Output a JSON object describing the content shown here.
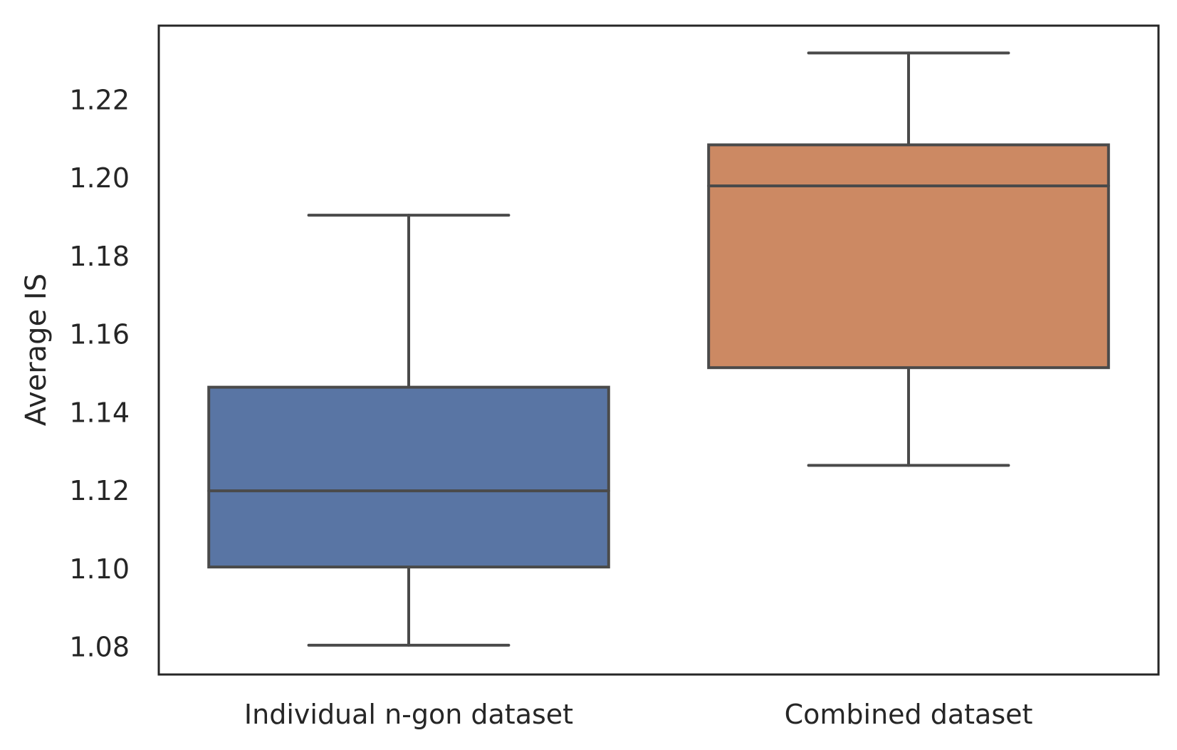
{
  "chart_data": {
    "type": "box",
    "title": "",
    "xlabel": "",
    "ylabel": "Average IS",
    "ylim": [
      1.073,
      1.239
    ],
    "yticks": [
      1.08,
      1.1,
      1.12,
      1.14,
      1.16,
      1.18,
      1.2,
      1.22
    ],
    "ytick_labels": [
      "1.08",
      "1.10",
      "1.12",
      "1.14",
      "1.16",
      "1.18",
      "1.20",
      "1.22"
    ],
    "grid": false,
    "categories": [
      "Individual n-gon dataset",
      "Combined dataset"
    ],
    "boxes": [
      {
        "category": "Individual n-gon dataset",
        "whisker_low": 1.0805,
        "q1": 1.1005,
        "median": 1.12,
        "q3": 1.1465,
        "whisker_high": 1.1905,
        "color": "#5975A4"
      },
      {
        "category": "Combined dataset",
        "whisker_low": 1.1265,
        "q1": 1.1515,
        "median": 1.198,
        "q3": 1.2085,
        "whisker_high": 1.232,
        "color": "#CC8963"
      }
    ],
    "line_color": "#4a4a4a",
    "frame_color": "#262626"
  }
}
